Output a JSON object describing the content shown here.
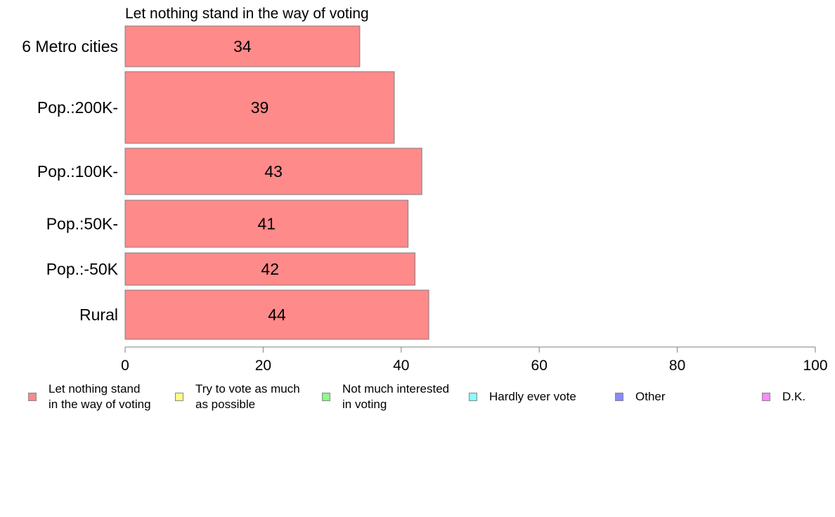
{
  "chart_data": {
    "type": "bar",
    "orientation": "horizontal",
    "title": "Let nothing stand in the way of voting",
    "categories": [
      "6 Metro cities",
      "Pop.:200K-",
      "Pop.:100K-",
      "Pop.:50K-",
      "Pop.:-50K",
      "Rural"
    ],
    "series": [
      {
        "name": "Let nothing stand in the way of voting",
        "values": [
          34,
          39,
          43,
          41,
          42,
          44
        ],
        "color": "#ff8a8a"
      }
    ],
    "xlim": [
      0,
      100
    ],
    "xticks": [
      0,
      20,
      40,
      60,
      80,
      100
    ],
    "grid": false,
    "legend_position": "bottom"
  },
  "legend": {
    "items": [
      {
        "label": "Let nothing stand\nin the way of voting",
        "color": "#ff8a8a"
      },
      {
        "label": "Try to vote as much\nas possible",
        "color": "#ffff8a"
      },
      {
        "label": "Not much interested\nin voting",
        "color": "#8aff8a"
      },
      {
        "label": "Hardly ever vote",
        "color": "#8affff"
      },
      {
        "label": "Other",
        "color": "#8a8aff"
      },
      {
        "label": "D.K.",
        "color": "#ff8aff"
      }
    ]
  }
}
